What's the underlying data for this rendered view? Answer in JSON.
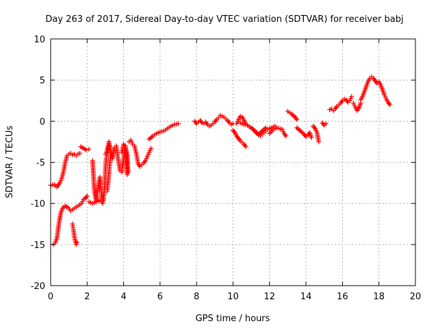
{
  "chart_data": {
    "type": "scatter",
    "title": "Day 263 of 2017, Sidereal Day-to-day VTEC variation (SDTVAR) for receiver babj",
    "xlabel": "GPS time / hours",
    "ylabel": "SDTVAR / TECUs",
    "xlim": [
      0,
      20
    ],
    "ylim": [
      -20,
      10
    ],
    "xticks": [
      0,
      2,
      4,
      6,
      8,
      10,
      12,
      14,
      16,
      18,
      20
    ],
    "yticks": [
      -20,
      -15,
      -10,
      -5,
      0,
      5,
      10
    ],
    "grid": true,
    "marker": "+",
    "color": "#ff0000",
    "series": [
      {
        "name": "segment-1",
        "x": [
          0.0,
          0.2,
          0.35,
          0.5,
          0.6,
          0.7,
          0.8,
          0.9,
          1.0,
          1.1,
          1.2,
          1.3,
          1.4,
          1.5,
          1.6
        ],
        "y": [
          -7.8,
          -7.7,
          -8.0,
          -7.5,
          -7.0,
          -6.2,
          -5.0,
          -4.2,
          -4.0,
          -3.9,
          -4.1,
          -4.0,
          -4.2,
          -4.0,
          -3.9
        ]
      },
      {
        "name": "segment-2",
        "x": [
          0.15,
          0.25,
          0.35,
          0.45,
          0.55,
          0.65,
          0.8,
          0.95,
          1.1,
          1.3,
          1.5,
          1.7,
          1.8,
          1.9,
          2.0
        ],
        "y": [
          -15.0,
          -14.8,
          -14.2,
          -12.5,
          -11.2,
          -10.6,
          -10.3,
          -10.5,
          -10.9,
          -10.6,
          -10.3,
          -10.0,
          -9.5,
          -9.4,
          -9.1
        ]
      },
      {
        "name": "segment-3",
        "x": [
          1.2,
          1.25,
          1.3,
          1.35,
          1.4,
          1.45
        ],
        "y": [
          -12.5,
          -13.2,
          -14.0,
          -14.6,
          -15.0,
          -14.7
        ]
      },
      {
        "name": "segment-4",
        "x": [
          1.65,
          1.8,
          1.95,
          2.1
        ],
        "y": [
          -3.1,
          -3.3,
          -3.5,
          -3.4
        ]
      },
      {
        "name": "segment-5",
        "x": [
          2.3,
          2.4,
          2.5,
          2.6,
          2.7,
          2.8,
          2.9
        ],
        "y": [
          -4.8,
          -8.5,
          -9.8,
          -8.0,
          -6.8,
          -9.2,
          -9.6
        ]
      },
      {
        "name": "segment-6",
        "x": [
          2.1,
          2.3,
          2.5,
          2.7,
          2.85,
          2.95,
          3.0,
          3.05,
          3.1,
          3.15,
          3.2
        ],
        "y": [
          -9.8,
          -10.0,
          -9.8,
          -9.6,
          -10.0,
          -8.5,
          -6.0,
          -4.5,
          -4.0,
          -3.8,
          -3.0
        ]
      },
      {
        "name": "segment-7",
        "x": [
          3.0,
          3.1,
          3.2,
          3.3,
          3.4,
          3.5,
          3.6,
          3.7,
          3.8,
          3.9,
          4.0,
          4.1,
          4.2
        ],
        "y": [
          -4.0,
          -3.5,
          -2.5,
          -3.8,
          -4.5,
          -3.2,
          -3.0,
          -4.6,
          -6.0,
          -6.2,
          -4.5,
          -3.0,
          -6.5
        ]
      },
      {
        "name": "segment-8",
        "x": [
          3.1,
          3.15,
          3.2,
          3.25,
          3.3
        ],
        "y": [
          -8.5,
          -7.5,
          -6.2,
          -5.0,
          -4.2
        ]
      },
      {
        "name": "segment-9",
        "x": [
          3.9,
          4.0,
          4.1,
          4.2,
          4.25
        ],
        "y": [
          -3.8,
          -2.8,
          -3.2,
          -4.0,
          -6.2
        ]
      },
      {
        "name": "segment-10",
        "x": [
          4.3,
          4.4,
          4.5
        ],
        "y": [
          -2.5,
          -2.3,
          -2.8
        ]
      },
      {
        "name": "segment-11",
        "x": [
          4.6,
          4.7,
          4.8,
          4.9,
          5.0,
          5.1,
          5.2,
          5.3,
          5.4,
          5.5
        ],
        "y": [
          -3.0,
          -4.0,
          -5.2,
          -5.5,
          -5.3,
          -5.1,
          -4.8,
          -4.3,
          -3.8,
          -3.3
        ]
      },
      {
        "name": "segment-12",
        "x": [
          5.4,
          5.6,
          5.8,
          6.0,
          6.2,
          6.4,
          6.6,
          6.8,
          7.0
        ],
        "y": [
          -2.2,
          -1.8,
          -1.5,
          -1.3,
          -1.2,
          -0.9,
          -0.6,
          -0.4,
          -0.3
        ]
      },
      {
        "name": "segment-13",
        "x": [
          7.9,
          8.0,
          8.1,
          8.2,
          8.3,
          8.4,
          8.5,
          8.6,
          8.7,
          8.8,
          8.9,
          9.0,
          9.1,
          9.2
        ],
        "y": [
          0.0,
          -0.3,
          -0.1,
          0.1,
          -0.2,
          -0.3,
          -0.1,
          -0.4,
          -0.6,
          -0.5,
          -0.3,
          -0.1,
          0.2,
          0.4
        ]
      },
      {
        "name": "segment-14",
        "x": [
          9.3,
          9.5,
          9.6,
          9.7,
          9.8,
          9.9,
          10.0
        ],
        "y": [
          0.7,
          0.5,
          0.3,
          0.1,
          -0.2,
          -0.4,
          -0.3
        ]
      },
      {
        "name": "segment-15",
        "x": [
          10.0,
          10.1,
          10.2,
          10.3,
          10.4,
          10.5,
          10.6,
          10.7
        ],
        "y": [
          -1.1,
          -1.4,
          -1.8,
          -2.1,
          -2.4,
          -2.6,
          -2.8,
          -3.1
        ]
      },
      {
        "name": "segment-16",
        "x": [
          10.2,
          10.3,
          10.4,
          10.5,
          10.6,
          10.7,
          10.8,
          10.9,
          11.0,
          11.1,
          11.2,
          11.3,
          11.4,
          11.5,
          11.6,
          11.7,
          11.8,
          11.9,
          12.0,
          12.1,
          12.2,
          12.3
        ],
        "y": [
          -0.3,
          0.2,
          0.6,
          0.5,
          0.1,
          -0.3,
          -0.5,
          -0.7,
          -0.8,
          -1.0,
          -1.2,
          -1.5,
          -1.7,
          -1.8,
          -1.6,
          -1.4,
          -1.2,
          -1.0,
          -0.9,
          -0.8,
          -0.7,
          -0.6
        ]
      },
      {
        "name": "segment-17",
        "x": [
          10.4,
          10.6,
          10.8,
          11.0,
          11.2,
          11.4,
          11.6,
          11.8
        ],
        "y": [
          -0.2,
          -0.4,
          -0.5,
          -0.8,
          -1.2,
          -1.6,
          -1.2,
          -0.8
        ]
      },
      {
        "name": "segment-18",
        "x": [
          12.0,
          12.2,
          12.4,
          12.7,
          12.8,
          12.9
        ],
        "y": [
          -1.5,
          -1.0,
          -0.8,
          -1.0,
          -1.5,
          -1.8
        ]
      },
      {
        "name": "segment-19",
        "x": [
          13.0,
          13.2,
          13.4,
          13.5
        ],
        "y": [
          1.2,
          0.9,
          0.5,
          0.2
        ]
      },
      {
        "name": "segment-20",
        "x": [
          13.5,
          13.7,
          13.9,
          14.0,
          14.1,
          14.2,
          14.3
        ],
        "y": [
          -0.8,
          -1.2,
          -1.6,
          -1.9,
          -1.7,
          -1.4,
          -2.0
        ]
      },
      {
        "name": "segment-21",
        "x": [
          14.4,
          14.5,
          14.6,
          14.7
        ],
        "y": [
          -0.6,
          -0.9,
          -1.3,
          -2.5
        ]
      },
      {
        "name": "segment-22",
        "x": [
          14.9,
          15.0,
          15.1
        ],
        "y": [
          -0.2,
          -0.5,
          -0.3
        ]
      },
      {
        "name": "segment-23",
        "x": [
          15.3,
          15.4,
          15.5,
          15.6,
          15.7,
          15.8,
          15.9,
          16.0,
          16.1,
          16.2,
          16.3,
          16.4,
          16.5
        ],
        "y": [
          1.4,
          1.5,
          1.3,
          1.5,
          1.8,
          2.0,
          2.2,
          2.5,
          2.7,
          2.6,
          2.3,
          2.5,
          3.0
        ]
      },
      {
        "name": "segment-24",
        "x": [
          16.6,
          16.7,
          16.8,
          16.9,
          17.0
        ],
        "y": [
          2.2,
          1.7,
          1.3,
          1.6,
          2.2
        ]
      },
      {
        "name": "segment-25",
        "x": [
          17.0,
          17.1,
          17.2,
          17.3,
          17.4,
          17.5,
          17.6,
          17.7,
          17.8,
          17.9,
          18.0,
          18.1,
          18.2,
          18.3,
          18.4,
          18.5,
          18.6
        ],
        "y": [
          2.6,
          3.0,
          3.6,
          4.2,
          4.8,
          5.2,
          5.4,
          5.2,
          4.9,
          4.6,
          4.8,
          4.4,
          3.8,
          3.2,
          2.7,
          2.3,
          2.0
        ]
      }
    ]
  }
}
